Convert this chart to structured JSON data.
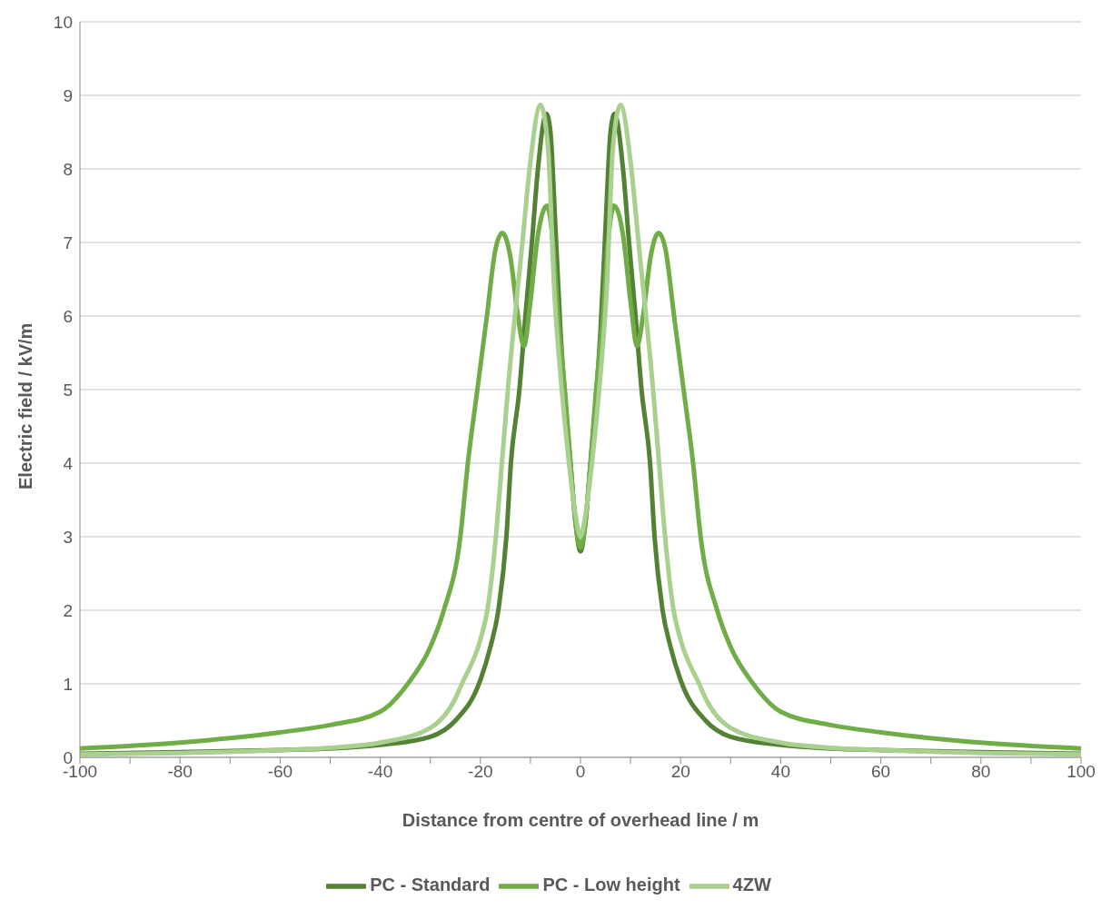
{
  "chart_data": {
    "type": "line",
    "xlabel": "Distance from centre of overhead line / m",
    "ylabel": "Electric field / kV/m",
    "xlim": [
      -100,
      100
    ],
    "xticks": [
      -100,
      {
        "value": -90,
        "label": null
      },
      -80,
      {
        "value": -70,
        "label": null
      },
      -60,
      {
        "value": -50,
        "label": null
      },
      -40,
      {
        "value": -30,
        "label": null
      },
      -20,
      {
        "value": -10,
        "label": null
      },
      0,
      {
        "value": 10,
        "label": null
      },
      20,
      {
        "value": 30,
        "label": null
      },
      40,
      {
        "value": 50,
        "label": null
      },
      60,
      {
        "value": 70,
        "label": null
      },
      80,
      {
        "value": 90,
        "label": null
      },
      100
    ],
    "ylim": [
      0,
      10
    ],
    "yticks": [
      0,
      1,
      2,
      3,
      4,
      5,
      6,
      7,
      8,
      9,
      10
    ],
    "grid": "y",
    "legend": "bottom",
    "marker": "none",
    "line_style": "solid",
    "series": [
      {
        "name": "PC - Standard",
        "color": "#548235",
        "x": [
          -100,
          -80,
          -60,
          -50,
          -40,
          -30,
          -25,
          -20,
          -18,
          -16.4,
          -14.8,
          -13.9,
          -12.2,
          -11,
          -9.7,
          -8.5,
          -6.8,
          -6,
          -5,
          -4,
          -3,
          -2,
          -1,
          0,
          1,
          2,
          3,
          4,
          5,
          6,
          6.8,
          8.5,
          9.7,
          11,
          12.2,
          13.9,
          14.8,
          16.4,
          18,
          20,
          25,
          30,
          40,
          50,
          60,
          80,
          100
        ],
        "values": [
          0.05,
          0.07,
          0.1,
          0.12,
          0.17,
          0.28,
          0.5,
          1.05,
          1.5,
          2,
          3,
          4,
          5,
          6,
          7,
          8,
          8.75,
          8.5,
          7.2,
          5.8,
          4.8,
          4,
          3.2,
          2.8,
          3.2,
          4,
          4.8,
          5.8,
          7.2,
          8.5,
          8.75,
          8,
          7,
          6,
          5,
          4,
          3,
          2,
          1.5,
          1.05,
          0.5,
          0.28,
          0.17,
          0.12,
          0.1,
          0.07,
          0.05
        ]
      },
      {
        "name": "PC - Low height",
        "color": "#70ad47",
        "x": [
          -100,
          -80,
          -60,
          -50,
          -40,
          -34.5,
          -30,
          -27.3,
          -24,
          -22.5,
          -20.6,
          -18.7,
          -17,
          -15.6,
          -14,
          -12.5,
          -11.3,
          -10,
          -8.5,
          -6.7,
          -5.5,
          -4.5,
          -3,
          -2,
          -1,
          0,
          1,
          2,
          3,
          4.5,
          5.5,
          6.7,
          8.5,
          10,
          11.3,
          12.5,
          14,
          15.6,
          17,
          18.7,
          20.6,
          22.5,
          24,
          27.3,
          30,
          34.5,
          40,
          50,
          60,
          80,
          100
        ],
        "values": [
          0.12,
          0.2,
          0.34,
          0.44,
          0.62,
          1,
          1.5,
          2,
          3,
          4,
          5,
          6,
          6.9,
          7.13,
          6.8,
          6,
          5.59,
          6.2,
          7.1,
          7.5,
          7,
          6,
          4.9,
          4,
          3.2,
          2.85,
          3.2,
          4,
          4.9,
          6,
          7,
          7.5,
          7.1,
          6.2,
          5.59,
          6,
          6.8,
          7.13,
          6.9,
          6,
          5,
          4,
          3,
          2,
          1.5,
          1,
          0.62,
          0.44,
          0.34,
          0.2,
          0.12
        ]
      },
      {
        "name": "4ZW",
        "color": "#a9d08e",
        "x": [
          -100,
          -80,
          -60,
          -50,
          -40,
          -30,
          -25,
          -23.7,
          -20,
          -18.6,
          -16.9,
          -15.7,
          -14.5,
          -11.6,
          -10,
          -8,
          -6.5,
          -5.2,
          -4,
          -2.3,
          -1,
          0,
          1,
          2.3,
          4,
          5.2,
          6.5,
          8,
          10,
          11.6,
          14.5,
          15.7,
          16.9,
          18.6,
          20,
          23.7,
          25,
          30,
          40,
          50,
          60,
          80,
          100
        ],
        "values": [
          0.04,
          0.06,
          0.1,
          0.13,
          0.2,
          0.4,
          0.8,
          1,
          1.6,
          2,
          3,
          4,
          5,
          7,
          8.1,
          8.87,
          8.3,
          6.3,
          5.2,
          4,
          3.3,
          3,
          3.3,
          4,
          5.2,
          6.3,
          8.3,
          8.87,
          8.1,
          7,
          5,
          4,
          3,
          2,
          1.6,
          1,
          0.8,
          0.4,
          0.2,
          0.13,
          0.1,
          0.06,
          0.04
        ]
      }
    ]
  }
}
